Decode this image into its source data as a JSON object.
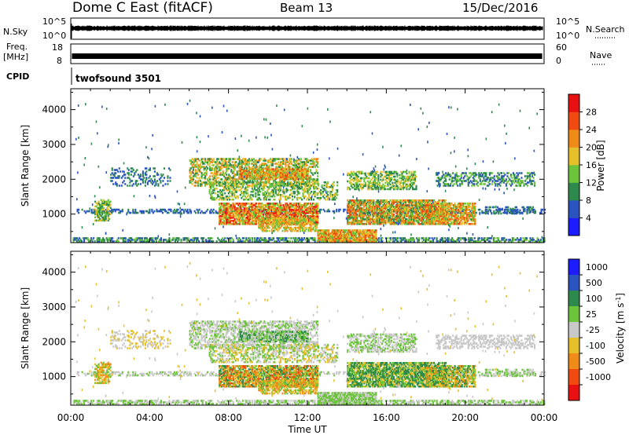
{
  "header": {
    "station": "Dome C East (fitACF)",
    "beam": "Beam 13",
    "date": "15/Dec/2016"
  },
  "top_panels": {
    "nsky_label": "N.Sky",
    "nsky_tick_hi": "10^5",
    "nsky_tick_lo": "10^0",
    "nsearch_label": "N.Search",
    "nsearch_tick_hi": "10^5",
    "nsearch_tick_lo": "10^0",
    "freq_label_1": "Freq.",
    "freq_label_2": "[MHz]",
    "freq_tick_hi": "18",
    "freq_tick_lo": "8",
    "nave_label": "Nave",
    "nave_tick_hi": "60",
    "nave_tick_lo": "0",
    "cpid_label": "CPID",
    "cpid_value": "twofsound 3501"
  },
  "chart_data": [
    {
      "type": "heatmap",
      "name_in_image": "Power",
      "ylabel": "Slant Range [km]",
      "yticks": [
        1000,
        2000,
        3000,
        4000
      ],
      "ylim": [
        180,
        4600
      ],
      "xlim_hours": [
        0,
        24
      ],
      "colorbar_label": "Power [dB]",
      "colorbar_ticks": [
        "4",
        "8",
        "12",
        "16",
        "20",
        "24",
        "28"
      ],
      "colorbar_colors": [
        "#1c1cff",
        "#2a55c0",
        "#2e8a4c",
        "#6cc43a",
        "#e6c02a",
        "#f08a18",
        "#f04a10",
        "#e81010"
      ]
    },
    {
      "type": "heatmap",
      "name_in_image": "Velocity",
      "ylabel": "Slant Range [km]",
      "yticks": [
        1000,
        2000,
        3000,
        4000
      ],
      "ylim": [
        180,
        4600
      ],
      "xlim_hours": [
        0,
        24
      ],
      "xlabel": "Time UT",
      "xticks": [
        "00:00",
        "04:00",
        "08:00",
        "12:00",
        "16:00",
        "20:00",
        "00:00"
      ],
      "colorbar_label": "Velocity [m s^-1]",
      "colorbar_ticks": [
        "1000",
        "500",
        "100",
        "25",
        "-25",
        "-100",
        "-500",
        "-1000"
      ],
      "colorbar_colors": [
        "#1c1cff",
        "#2a55c0",
        "#2e8a4c",
        "#6cc43a",
        "#c8c8c8",
        "#e6c02a",
        "#f08a18",
        "#f04a10",
        "#e81010"
      ]
    }
  ],
  "echo_regions": [
    {
      "t0": 0.1,
      "t1": 24,
      "r0": 200,
      "r1": 330,
      "p": 0.55,
      "pw": [
        1,
        2,
        3
      ],
      "vel": [
        3,
        4
      ]
    },
    {
      "t0": 0.3,
      "t1": 24,
      "r0": 1020,
      "r1": 1120,
      "p": 0.45,
      "pw": [
        1,
        1,
        2
      ],
      "vel": [
        4,
        4,
        3
      ]
    },
    {
      "t0": 1.2,
      "t1": 2.0,
      "r0": 800,
      "r1": 1400,
      "p": 0.6,
      "pw": [
        2,
        3,
        4
      ],
      "vel": [
        5,
        6,
        3
      ]
    },
    {
      "t0": 2.0,
      "t1": 5.0,
      "r0": 1800,
      "r1": 2300,
      "p": 0.25,
      "pw": [
        1,
        2
      ],
      "vel": [
        4,
        5
      ]
    },
    {
      "t0": 6.0,
      "t1": 12.5,
      "r0": 1800,
      "r1": 2600,
      "p": 0.5,
      "pw": [
        2,
        3,
        4,
        5
      ],
      "vel": [
        4,
        4,
        3
      ]
    },
    {
      "t0": 8.5,
      "t1": 12.0,
      "r0": 2000,
      "r1": 2300,
      "p": 0.75,
      "pw": [
        3,
        4,
        5,
        6
      ],
      "vel": [
        4,
        3,
        2
      ]
    },
    {
      "t0": 7.0,
      "t1": 13.5,
      "r0": 1400,
      "r1": 1900,
      "p": 0.45,
      "pw": [
        2,
        3,
        4
      ],
      "vel": [
        4,
        3,
        5
      ]
    },
    {
      "t0": 7.5,
      "t1": 12.5,
      "r0": 700,
      "r1": 1300,
      "p": 0.8,
      "pw": [
        4,
        5,
        6,
        7,
        3
      ],
      "vel": [
        5,
        6,
        7,
        3,
        2
      ]
    },
    {
      "t0": 9.5,
      "t1": 12.5,
      "r0": 500,
      "r1": 900,
      "p": 0.55,
      "pw": [
        3,
        4,
        5
      ],
      "vel": [
        6,
        5,
        3
      ]
    },
    {
      "t0": 12.5,
      "t1": 15.5,
      "r0": 200,
      "r1": 520,
      "p": 0.85,
      "pw": [
        5,
        6,
        3,
        4
      ],
      "vel": [
        3,
        3,
        4
      ]
    },
    {
      "t0": 14.0,
      "t1": 17.5,
      "r0": 1700,
      "r1": 2200,
      "p": 0.5,
      "pw": [
        2,
        3,
        4
      ],
      "vel": [
        4,
        3
      ]
    },
    {
      "t0": 14.0,
      "t1": 19.0,
      "r0": 700,
      "r1": 1400,
      "p": 0.8,
      "pw": [
        4,
        5,
        6,
        3,
        2
      ],
      "vel": [
        2,
        3,
        2,
        5
      ]
    },
    {
      "t0": 18.0,
      "t1": 20.5,
      "r0": 700,
      "r1": 1300,
      "p": 0.7,
      "pw": [
        3,
        4,
        5,
        6
      ],
      "vel": [
        3,
        2,
        5,
        6
      ]
    },
    {
      "t0": 18.5,
      "t1": 23.5,
      "r0": 1800,
      "r1": 2200,
      "p": 0.4,
      "pw": [
        1,
        2,
        3
      ],
      "vel": [
        4,
        4
      ]
    },
    {
      "t0": 21.0,
      "t1": 23.5,
      "r0": 1000,
      "r1": 1200,
      "p": 0.35,
      "pw": [
        1,
        2
      ],
      "vel": [
        3,
        4
      ]
    }
  ]
}
